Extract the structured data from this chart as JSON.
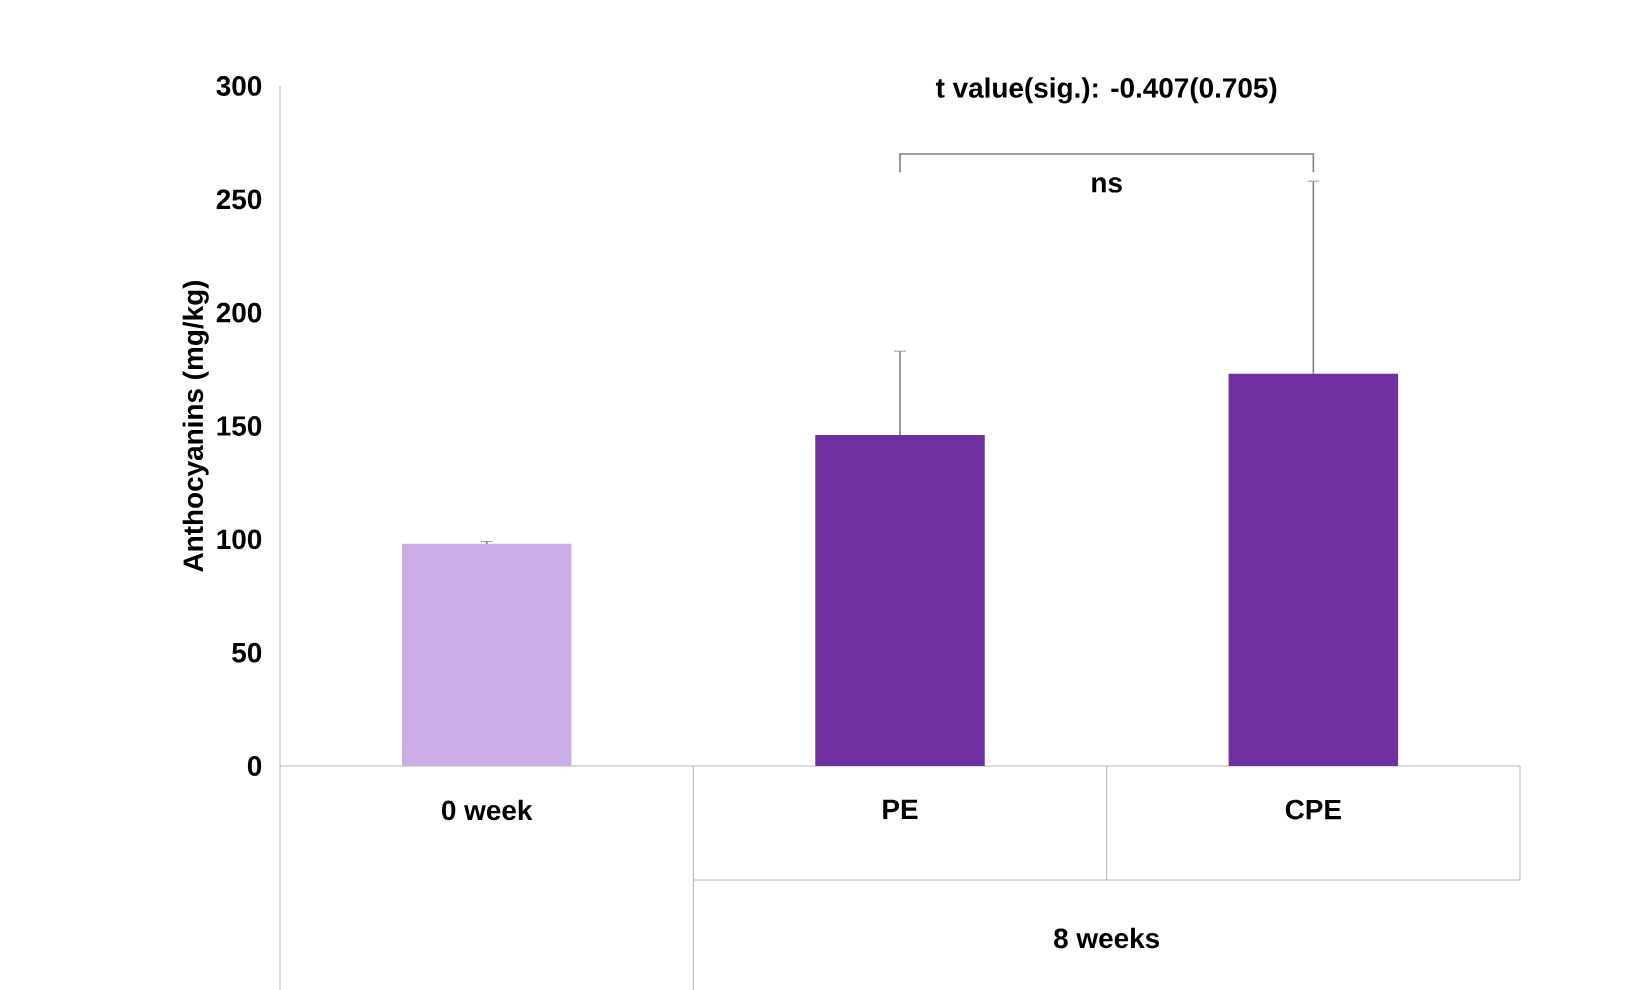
{
  "chart_data": {
    "type": "bar",
    "ylabel": "Anthocyanins (mg/kg)",
    "categories": [
      "0 week",
      "PE",
      "CPE"
    ],
    "values": [
      98,
      146,
      173
    ],
    "colors": [
      "#cbaee8",
      "#7030a0",
      "#7030a0"
    ],
    "errors": [
      1,
      37,
      85
    ],
    "ylim": [
      0,
      300
    ],
    "yticks": [
      0,
      50,
      100,
      150,
      200,
      250,
      300
    ],
    "annotations": [
      "t value(sig.): -0.407(0.705)",
      "ns",
      "8 weeks"
    ]
  }
}
